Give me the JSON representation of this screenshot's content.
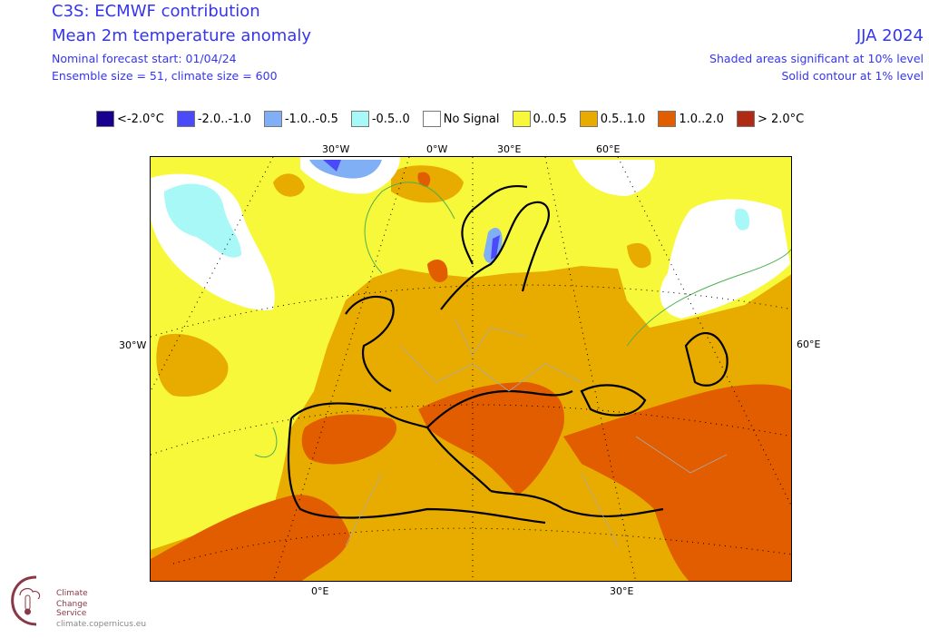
{
  "header": {
    "title": "C3S: ECMWF contribution",
    "subtitle": "Mean 2m temperature anomaly",
    "forecast_start": "Nominal forecast start: 01/04/24",
    "ensemble": "Ensemble size = 51, climate size = 600",
    "season": "JJA 2024",
    "note1": "Shaded areas significant at 10% level",
    "note2": "Solid contour at 1% level"
  },
  "legend": [
    {
      "label": "<-2.0°C",
      "color": "#1a0090"
    },
    {
      "label": "-2.0..-1.0",
      "color": "#4a4af8"
    },
    {
      "label": "-1.0..-0.5",
      "color": "#80aff5"
    },
    {
      "label": "-0.5..0",
      "color": "#a8f8f8"
    },
    {
      "label": "No Signal",
      "color": "#ffffff"
    },
    {
      "label": "0..0.5",
      "color": "#f8f83a"
    },
    {
      "label": "0.5..1.0",
      "color": "#e8ab00"
    },
    {
      "label": "1.0..2.0",
      "color": "#e25c00"
    },
    {
      "label": "> 2.0°C",
      "color": "#b02a14"
    }
  ],
  "axis_labels": {
    "top": [
      "30°W",
      "0°W",
      "30°E",
      "60°E"
    ],
    "left": "30°W",
    "right": "60°E",
    "bottom": [
      "0°E",
      "30°E"
    ]
  },
  "logo": {
    "name1": "Climate",
    "name2": "Change Service",
    "url": "climate.copernicus.eu"
  }
}
